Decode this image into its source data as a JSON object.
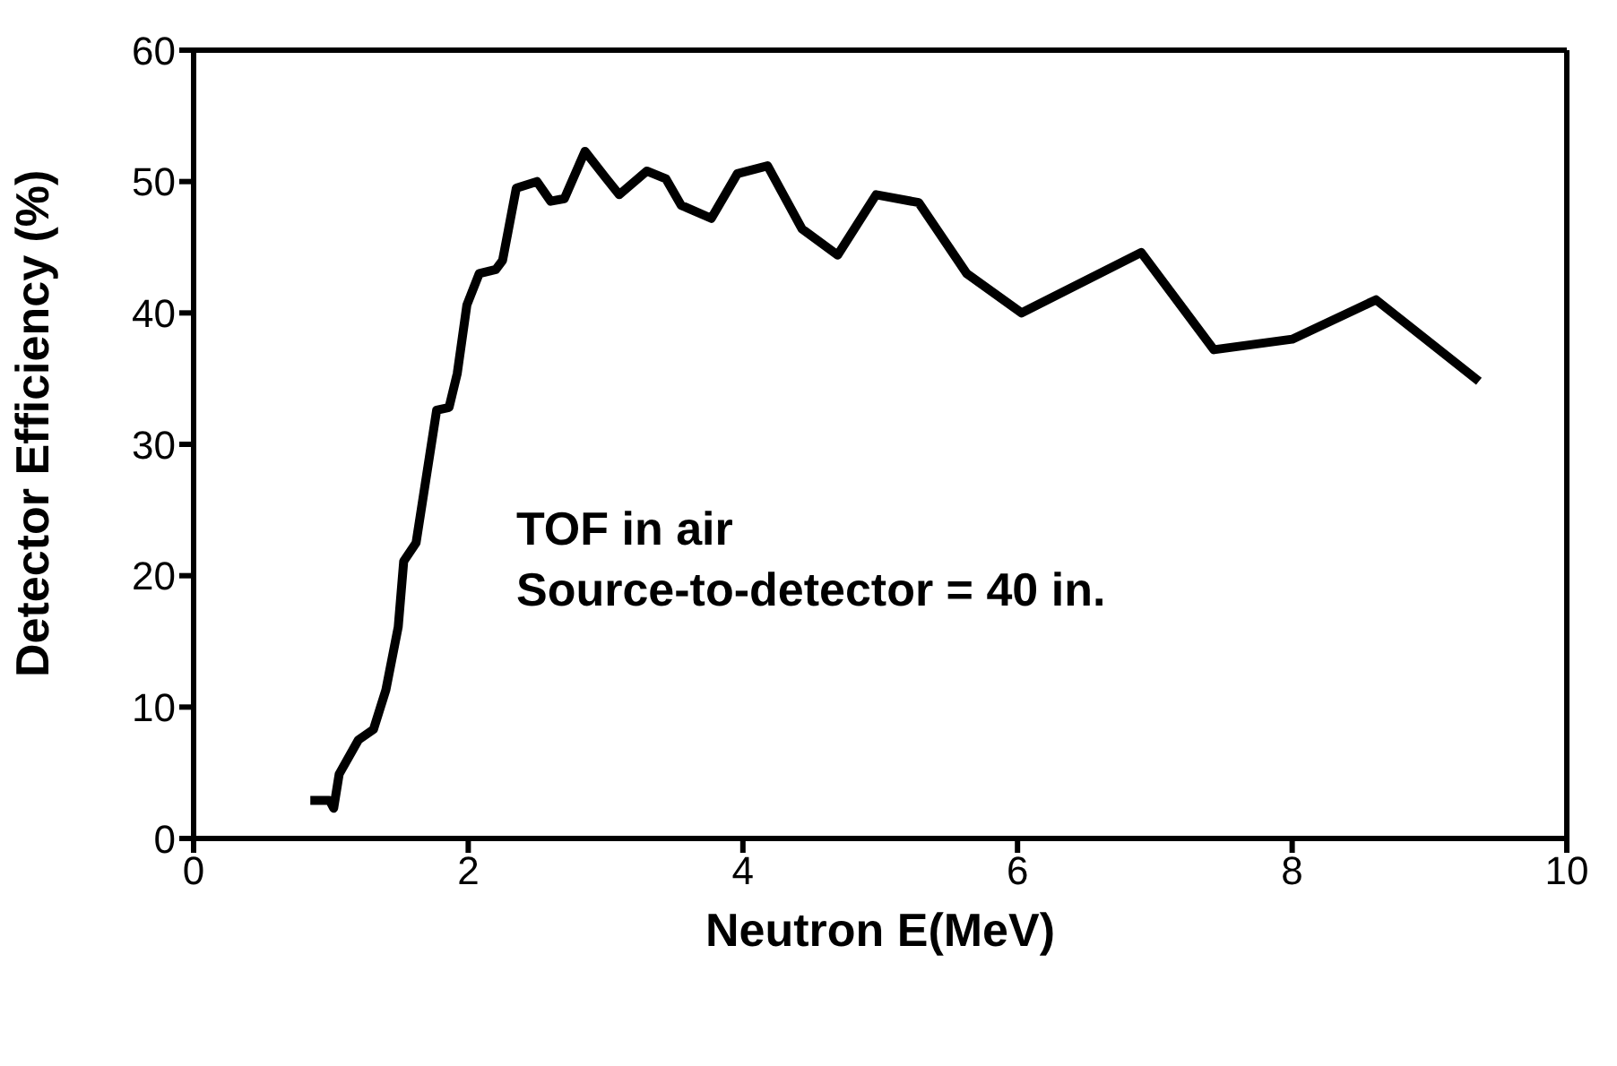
{
  "chart_data": {
    "type": "line",
    "xlabel": "Neutron E(MeV)",
    "ylabel": "Detector Efficiency (%)",
    "x": [
      0.85,
      0.99,
      1.02,
      1.06,
      1.2,
      1.31,
      1.4,
      1.49,
      1.53,
      1.62,
      1.77,
      1.86,
      1.92,
      1.99,
      2.08,
      2.2,
      2.25,
      2.35,
      2.5,
      2.6,
      2.7,
      2.85,
      3.0,
      3.1,
      3.3,
      3.44,
      3.55,
      3.77,
      3.96,
      4.18,
      4.43,
      4.69,
      4.97,
      5.28,
      5.63,
      6.03,
      6.9,
      7.43,
      8.0,
      8.61,
      9.36
    ],
    "series": [
      {
        "color": "#000000",
        "values": [
          2.9,
          2.9,
          2.3,
          4.9,
          7.5,
          8.3,
          11.3,
          16.1,
          21.1,
          22.5,
          32.6,
          32.8,
          35.4,
          40.6,
          43.0,
          43.3,
          44.0,
          49.5,
          50.0,
          48.5,
          48.7,
          52.3,
          50.3,
          49.0,
          50.8,
          50.2,
          48.2,
          47.2,
          50.6,
          51.2,
          46.4,
          44.4,
          49.0,
          48.4,
          43.0,
          40.0,
          44.6,
          37.2,
          38.0,
          41.0,
          34.8
        ]
      }
    ],
    "xlim": [
      0,
      10
    ],
    "xticks": [
      0,
      2,
      4,
      6,
      8,
      10
    ],
    "ylim": [
      0,
      60
    ],
    "yticks": [
      0,
      10,
      20,
      30,
      40,
      50,
      60
    ],
    "annotations": [
      "TOF in air",
      "Source-to-detector = 40 in."
    ],
    "grid": false,
    "legend": false,
    "marker": "none",
    "line_style": "solid"
  }
}
